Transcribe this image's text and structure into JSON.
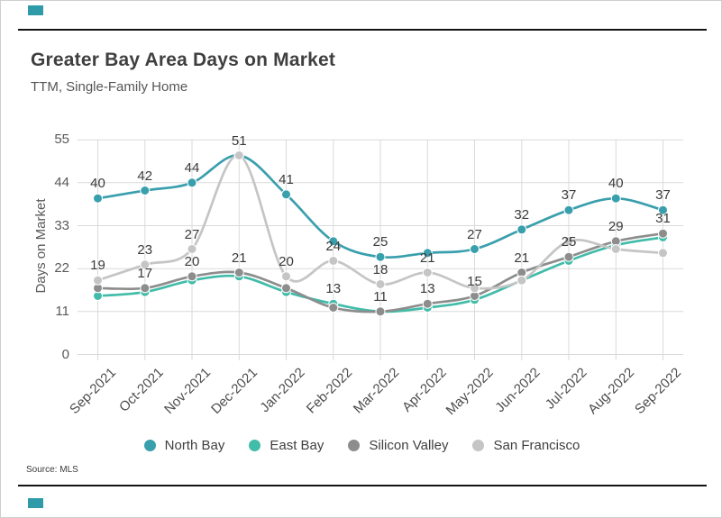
{
  "page": {
    "source": "Source:  MLS"
  },
  "colors": {
    "accent": "#2f9aa8",
    "grid": "#dadada",
    "rule": "#141414",
    "title_text": "#3f3f3f",
    "muted_text": "#595959"
  },
  "chart_data": {
    "type": "line",
    "title": "Greater Bay Area Days on Market",
    "subtitle": "TTM, Single-Family Home",
    "ylabel": "Days on Market",
    "ylim": [
      0,
      55
    ],
    "yticks": [
      0,
      11,
      22,
      33,
      44,
      55
    ],
    "grid": true,
    "legend_position": "bottom",
    "smooth": true,
    "categories": [
      "Sep-2021",
      "Oct-2021",
      "Nov-2021",
      "Dec-2021",
      "Jan-2022",
      "Feb-2022",
      "Mar-2022",
      "Apr-2022",
      "May-2022",
      "Jun-2022",
      "Jul-2022",
      "Aug-2022",
      "Sep-2022"
    ],
    "series": [
      {
        "name": "North Bay",
        "color": "#3a9fad",
        "values": [
          40,
          42,
          44,
          51,
          41,
          29,
          25,
          26,
          27,
          32,
          37,
          40,
          37
        ],
        "labels": [
          40,
          42,
          44,
          51,
          41,
          null,
          25,
          null,
          27,
          32,
          37,
          40,
          37
        ]
      },
      {
        "name": "East Bay",
        "color": "#41bca9",
        "values": [
          15,
          16,
          19,
          20,
          16,
          13,
          11,
          12,
          14,
          19,
          24,
          28,
          30
        ],
        "labels": [
          null,
          null,
          null,
          null,
          null,
          13,
          null,
          null,
          null,
          null,
          null,
          null,
          null
        ]
      },
      {
        "name": "Silicon Valley",
        "color": "#8d8d8d",
        "values": [
          17,
          17,
          20,
          21,
          17,
          12,
          11,
          13,
          15,
          21,
          25,
          29,
          31
        ],
        "labels": [
          null,
          17,
          20,
          21,
          null,
          null,
          11,
          13,
          15,
          21,
          25,
          29,
          31
        ]
      },
      {
        "name": "San Francisco",
        "color": "#c5c5c5",
        "values": [
          19,
          23,
          27,
          51,
          20,
          24,
          18,
          21,
          17,
          19,
          29,
          27,
          26
        ],
        "labels": [
          19,
          23,
          27,
          null,
          20,
          24,
          18,
          21,
          null,
          null,
          null,
          null,
          null
        ]
      }
    ]
  }
}
